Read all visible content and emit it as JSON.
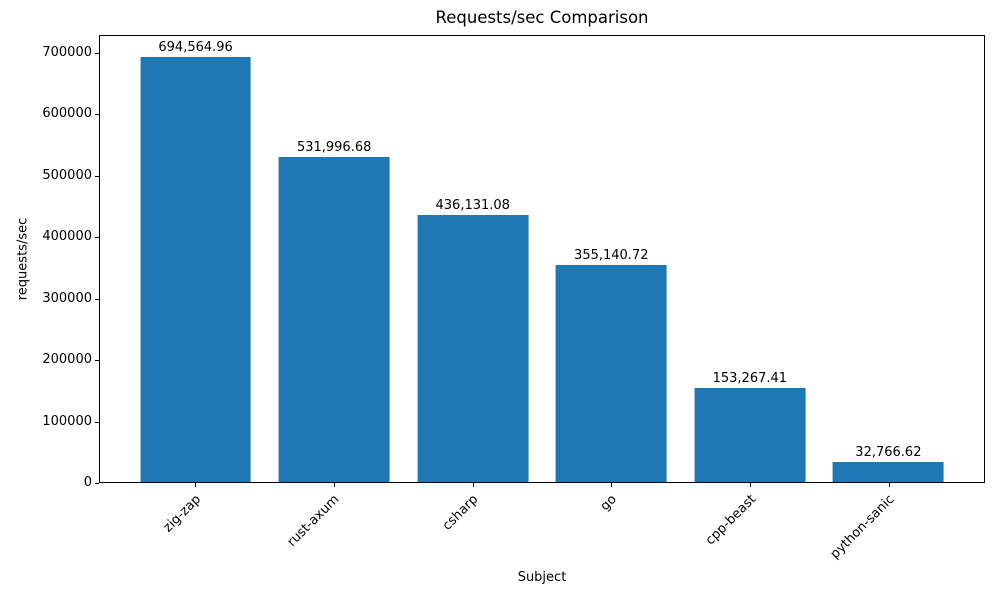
{
  "chart_data": {
    "type": "bar",
    "title": "Requests/sec Comparison",
    "xlabel": "Subject",
    "ylabel": "requests/sec",
    "categories": [
      "zig-zap",
      "rust-axum",
      "csharp",
      "go",
      "cpp-beast",
      "python-sanic"
    ],
    "values": [
      694564.96,
      531996.68,
      436131.08,
      355140.72,
      153267.41,
      32766.62
    ],
    "value_labels": [
      "694,564.96",
      "531,996.68",
      "436,131.08",
      "355,140.72",
      "153,267.41",
      "32,766.62"
    ],
    "yticks": [
      0,
      100000,
      200000,
      300000,
      400000,
      500000,
      600000,
      700000
    ],
    "ytick_labels": [
      "0",
      "100000",
      "200000",
      "300000",
      "400000",
      "500000",
      "600000",
      "700000"
    ],
    "ylim": [
      0,
      729293
    ],
    "xlim_units": 6.38,
    "x_offset_units": 0.69,
    "bar_width_units": 0.8,
    "bar_color": "#1f77b4",
    "grid": false,
    "legend_position": "none",
    "x_tick_rotation_deg": 45
  }
}
